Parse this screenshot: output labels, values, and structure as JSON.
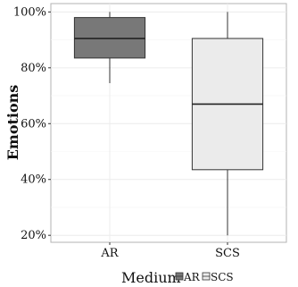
{
  "chart_data": {
    "type": "box",
    "ylabel": "Emotions",
    "xlabel": "Medium",
    "y_tick_labels": [
      "20%",
      "40%",
      "60%",
      "80%",
      "100%"
    ],
    "ylim": [
      0.175,
      1.03
    ],
    "grid": true,
    "legend_position": "bottom",
    "categories": [
      "AR",
      "SCS"
    ],
    "series": [
      {
        "name": "AR",
        "whisker_low": 0.745,
        "q1": 0.835,
        "median": 0.905,
        "q3": 0.98,
        "whisker_high": 1.0,
        "fill": "#787878"
      },
      {
        "name": "SCS",
        "whisker_low": 0.2,
        "q1": 0.435,
        "median": 0.67,
        "q3": 0.905,
        "whisker_high": 1.0,
        "fill": "#ebebeb"
      }
    ],
    "legend": {
      "title": "Medium",
      "items": [
        "AR",
        "SCS"
      ]
    }
  }
}
